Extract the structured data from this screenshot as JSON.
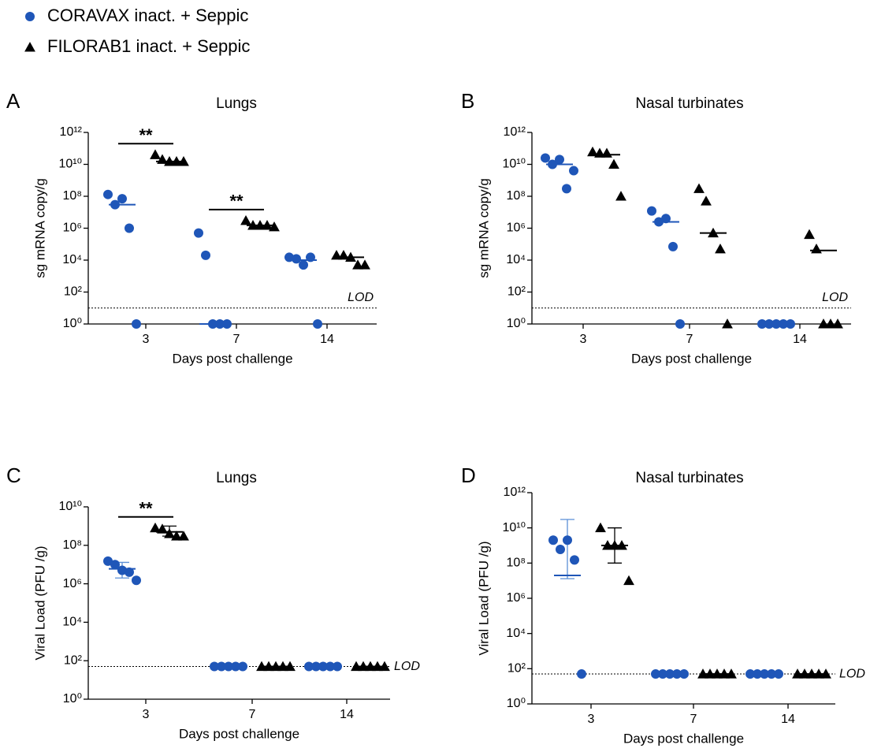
{
  "legend": [
    {
      "name": "CORAVAX inact. + Seppic",
      "color": "#1f56b8",
      "marker": "circle"
    },
    {
      "name": "FILORAB1 inact. + Seppic",
      "color": "#000000",
      "marker": "triangle"
    }
  ],
  "chart_data": [
    {
      "type": "scatter",
      "panel": "A",
      "title": "Lungs",
      "ylabel": "sg mRNA copy/g",
      "xlabel": "Days post challenge",
      "categories": [
        "3",
        "7",
        "14"
      ],
      "log_y": true,
      "ylim": [
        1,
        1000000000000
      ],
      "yticks": [
        {
          "value": 1,
          "label": "10⁰"
        },
        {
          "value": 100,
          "label": "10²"
        },
        {
          "value": 10000,
          "label": "10⁴"
        },
        {
          "value": 1000000,
          "label": "10⁶"
        },
        {
          "value": 100000000,
          "label": "10⁸"
        },
        {
          "value": 10000000000,
          "label": "10¹⁰"
        },
        {
          "value": 1000000000000,
          "label": "10¹²"
        }
      ],
      "lod": {
        "value": 10,
        "label": "LOD"
      },
      "significance": [
        "**",
        "**",
        null
      ],
      "series": [
        {
          "values": [
            [
              130000000,
              30000000,
              70000000,
              1000000,
              1
            ],
            [
              500000,
              20000,
              1,
              1,
              1
            ],
            [
              15000,
              12000,
              5000,
              15000,
              1
            ]
          ],
          "center": [
            30000000,
            1,
            10000
          ]
        },
        {
          "values": [
            [
              40000000000,
              20000000000,
              15000000000,
              15000000000,
              15000000000
            ],
            [
              3000000,
              1500000,
              1500000,
              1500000,
              1200000
            ],
            [
              20000,
              20000,
              15000,
              5000,
              5000
            ]
          ],
          "center": [
            15000000000,
            1500000,
            15000
          ]
        }
      ]
    },
    {
      "type": "scatter",
      "panel": "B",
      "title": "Nasal turbinates",
      "ylabel": "sg mRNA copy/g",
      "xlabel": "Days post challenge",
      "categories": [
        "3",
        "7",
        "14"
      ],
      "log_y": true,
      "ylim": [
        1,
        1000000000000
      ],
      "yticks": [
        {
          "value": 1,
          "label": "10⁰"
        },
        {
          "value": 100,
          "label": "10²"
        },
        {
          "value": 10000,
          "label": "10⁴"
        },
        {
          "value": 1000000,
          "label": "10⁶"
        },
        {
          "value": 100000000,
          "label": "10⁸"
        },
        {
          "value": 10000000000,
          "label": "10¹⁰"
        },
        {
          "value": 1000000000000,
          "label": "10¹²"
        }
      ],
      "lod": {
        "value": 10,
        "label": "LOD"
      },
      "series": [
        {
          "values": [
            [
              25000000000,
              10000000000,
              20000000000,
              300000000,
              4000000000
            ],
            [
              12000000,
              2500000,
              4000000,
              70000,
              1
            ],
            [
              1,
              1,
              1,
              1,
              1
            ]
          ],
          "center": [
            10000000000,
            2500000,
            1
          ]
        },
        {
          "values": [
            [
              60000000000,
              50000000000,
              50000000000,
              10000000000,
              100000000
            ],
            [
              300000000,
              50000000,
              500000,
              50000,
              1
            ],
            [
              400000,
              50000,
              1,
              1,
              1
            ]
          ],
          "center": [
            40000000000,
            500000,
            40000
          ]
        }
      ]
    },
    {
      "type": "scatter",
      "panel": "C",
      "title": "Lungs",
      "ylabel": "Viral Load (PFU /g)",
      "xlabel": "Days post challenge",
      "categories": [
        "3",
        "7",
        "14"
      ],
      "log_y": true,
      "ylim": [
        1,
        10000000000
      ],
      "yticks": [
        {
          "value": 1,
          "label": "10⁰"
        },
        {
          "value": 100,
          "label": "10²"
        },
        {
          "value": 10000,
          "label": "10⁴"
        },
        {
          "value": 1000000,
          "label": "10⁶"
        },
        {
          "value": 100000000,
          "label": "10⁸"
        },
        {
          "value": 10000000000,
          "label": "10¹⁰"
        }
      ],
      "lod": {
        "value": 50,
        "label": "LOD"
      },
      "significance": [
        "**",
        null,
        null
      ],
      "series": [
        {
          "values": [
            [
              15000000,
              10000000,
              5000000,
              4000000,
              1500000
            ],
            [
              50,
              50,
              50,
              50,
              50
            ],
            [
              50,
              50,
              50,
              50,
              50
            ]
          ],
          "center": [
            6000000,
            50,
            50
          ],
          "error": [
            [
              2000000,
              13000000
            ],
            null,
            null
          ]
        },
        {
          "values": [
            [
              800000000,
              700000000,
              400000000,
              300000000,
              300000000
            ],
            [
              50,
              50,
              50,
              50,
              50
            ],
            [
              50,
              50,
              50,
              50,
              50
            ]
          ],
          "center": [
            500000000,
            50,
            50
          ],
          "error": [
            [
              300000000,
              1000000000
            ],
            null,
            null
          ]
        }
      ]
    },
    {
      "type": "scatter",
      "panel": "D",
      "title": "Nasal turbinates",
      "ylabel": "Viral Load (PFU /g)",
      "xlabel": "Days post challenge",
      "categories": [
        "3",
        "7",
        "14"
      ],
      "log_y": true,
      "ylim": [
        1,
        1000000000000
      ],
      "yticks": [
        {
          "value": 1,
          "label": "10⁰"
        },
        {
          "value": 100,
          "label": "10²"
        },
        {
          "value": 10000,
          "label": "10⁴"
        },
        {
          "value": 1000000,
          "label": "10⁶"
        },
        {
          "value": 100000000,
          "label": "10⁸"
        },
        {
          "value": 10000000000,
          "label": "10¹⁰"
        },
        {
          "value": 1000000000000,
          "label": "10¹²"
        }
      ],
      "lod": {
        "value": 50,
        "label": "LOD"
      },
      "series": [
        {
          "values": [
            [
              2000000000,
              600000000,
              2000000000,
              150000000,
              50
            ],
            [
              50,
              50,
              50,
              50,
              50
            ],
            [
              50,
              50,
              50,
              50,
              50
            ]
          ],
          "center": [
            20000000,
            50,
            50
          ],
          "error": [
            [
              13000000,
              30000000000
            ],
            null,
            null
          ]
        },
        {
          "values": [
            [
              10000000000,
              1000000000,
              1000000000,
              1000000000,
              10000000
            ],
            [
              50,
              50,
              50,
              50,
              50
            ],
            [
              50,
              50,
              50,
              50,
              50
            ]
          ],
          "center": [
            1000000000,
            50,
            50
          ],
          "error": [
            [
              100000000,
              10000000000
            ],
            null,
            null
          ]
        }
      ]
    }
  ]
}
